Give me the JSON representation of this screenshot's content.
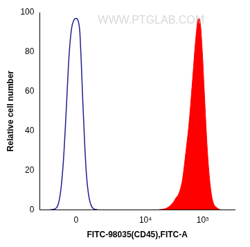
{
  "chart_data": {
    "type": "line",
    "annotations": [
      "WWW.PTGLAB.COM"
    ],
    "x_label": "FITC-98035(CD45),FITC-A",
    "y_label": "Relative cell number",
    "series": [
      {
        "color": "#1f1f8f",
        "type": "line",
        "x": [
          -1500,
          -1150,
          -950,
          -800,
          -650,
          -500,
          -350,
          -220,
          -110,
          0,
          100,
          190,
          260,
          340,
          430,
          530,
          640,
          760,
          940,
          1200
        ],
        "values": [
          0,
          0.5,
          3,
          10,
          25,
          50,
          78,
          92,
          96,
          97,
          96,
          90,
          75,
          55,
          35,
          18,
          8,
          3,
          0.5,
          0
        ]
      },
      {
        "color": "#ff0000",
        "type": "area",
        "x": [
          17000,
          22000,
          27000,
          31000,
          34000,
          38000,
          44000,
          50000,
          58000,
          67000,
          76000,
          84000,
          90000,
          98000,
          106000,
          120000,
          135000,
          150000,
          175000,
          200000
        ],
        "values": [
          0,
          0.5,
          2,
          4,
          6,
          8,
          15,
          28,
          45,
          68,
          88,
          97,
          95,
          80,
          60,
          30,
          12,
          4,
          1,
          0
        ]
      }
    ],
    "xlim": [
      -2500,
      360000
    ],
    "xticks": [
      0,
      {
        "value": 10000,
        "label": "10⁴"
      },
      {
        "value": 100000,
        "label": "10⁵"
      }
    ],
    "ylim": [
      0,
      100
    ],
    "yticks": [
      0,
      20,
      40,
      60,
      80,
      100
    ],
    "grid": false
  }
}
